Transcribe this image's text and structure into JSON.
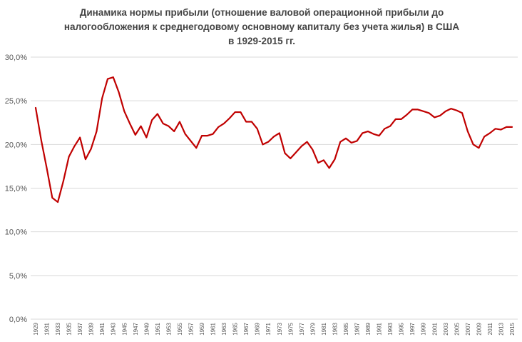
{
  "chart_data": {
    "type": "line",
    "title_lines": [
      "Динамика нормы прибыли (отношение валовой операционной прибыли до",
      "налогообложения  к среднегодовому  основному  капиталу  без учета жилья) в США",
      "в 1929-2015 гг."
    ],
    "y_ticks": [
      "0,0%",
      "5,0%",
      "10,0%",
      "15,0%",
      "20,0%",
      "25,0%",
      "30,0%"
    ],
    "ylim": [
      0,
      30
    ],
    "grid": true,
    "legend": "none",
    "x_tick_labels": [
      "1929",
      "1931",
      "1933",
      "1935",
      "1937",
      "1939",
      "1941",
      "1943",
      "1945",
      "1947",
      "1949",
      "1951",
      "1953",
      "1955",
      "1957",
      "1959",
      "1961",
      "1963",
      "1965",
      "1967",
      "1969",
      "1971",
      "1973",
      "1975",
      "1977",
      "1979",
      "1981",
      "1983",
      "1985",
      "1987",
      "1989",
      "1991",
      "1993",
      "1995",
      "1997",
      "1999",
      "2001",
      "2003",
      "2005",
      "2007",
      "2009",
      "2011",
      "2013",
      "2015"
    ],
    "x_start": 1929,
    "x_end": 2015,
    "series": [
      {
        "color": "#c00000",
        "values": [
          24.2,
          20.5,
          17.3,
          13.9,
          13.4,
          15.8,
          18.6,
          19.8,
          20.8,
          18.3,
          19.5,
          21.5,
          25.3,
          27.5,
          27.7,
          26.0,
          23.8,
          22.4,
          21.1,
          22.1,
          20.8,
          22.8,
          23.5,
          22.4,
          22.1,
          21.5,
          22.6,
          21.2,
          20.4,
          19.6,
          21.0,
          21.0,
          21.2,
          22.0,
          22.4,
          23.0,
          23.7,
          23.7,
          22.6,
          22.6,
          21.8,
          20.0,
          20.3,
          20.9,
          21.3,
          19.0,
          18.4,
          19.1,
          19.8,
          20.3,
          19.4,
          17.9,
          18.2,
          17.3,
          18.3,
          20.3,
          20.7,
          20.2,
          20.4,
          21.3,
          21.5,
          21.2,
          21.0,
          21.8,
          22.1,
          22.9,
          22.9,
          23.4,
          24.0,
          24.0,
          23.8,
          23.6,
          23.1,
          23.3,
          23.8,
          24.1,
          23.9,
          23.6,
          21.5,
          20.0,
          19.6,
          20.9,
          21.3,
          21.8,
          21.7,
          22.0,
          22.0
        ]
      }
    ]
  }
}
